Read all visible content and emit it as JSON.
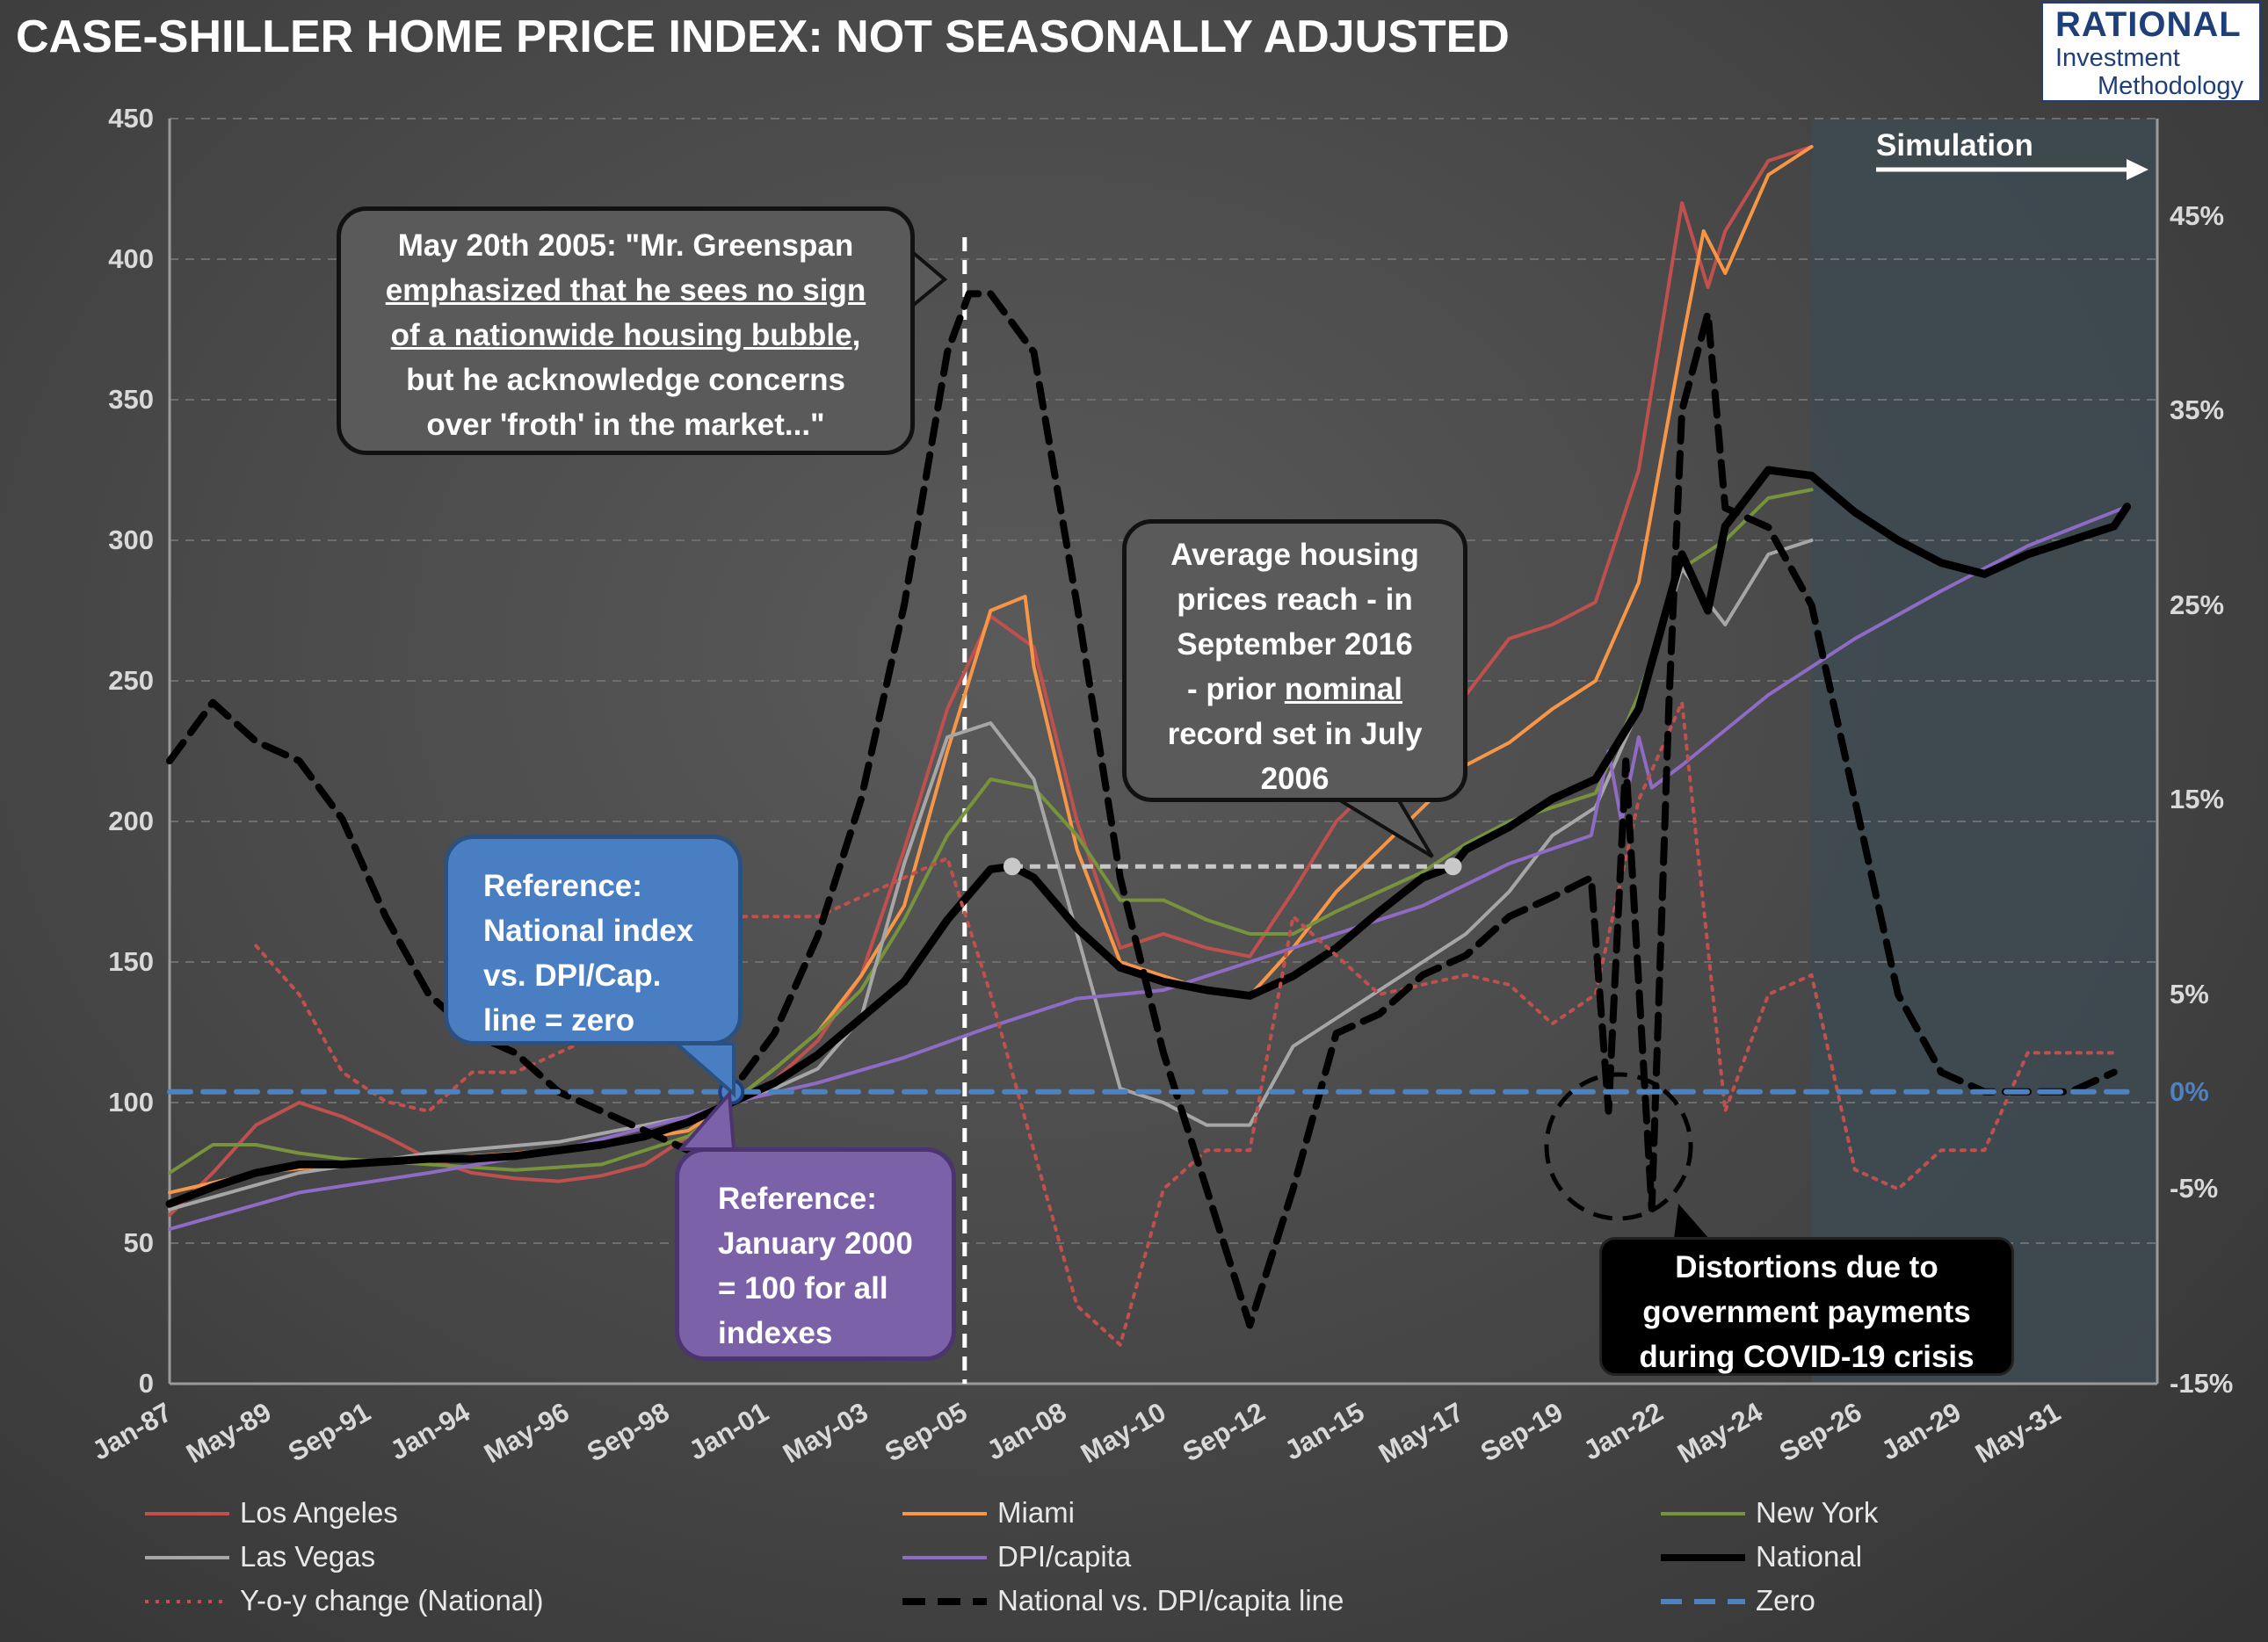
{
  "title": "CASE-SHILLER HOME PRICE INDEX: NOT SEASONALLY ADJUSTED",
  "logo": {
    "line1": "RATIONAL",
    "line2": "Investment",
    "line3": "Methodology"
  },
  "colors": {
    "los_angeles": "#c0504d",
    "miami": "#f79646",
    "new_york": "#77933c",
    "las_vegas": "#a6a6a6",
    "dpi_capita": "#8e6bc4",
    "national": "#000000",
    "yoy": "#c0504d",
    "national_vs_dpi": "#000000",
    "zero": "#4f81bd",
    "simulation_band": "#3e4a52"
  },
  "simulation_label": "Simulation",
  "callouts": {
    "greenspan": {
      "l1": "May 20th 2005: \"Mr. Greenspan",
      "l2": "emphasized that he sees no sign",
      "l3": "of a nationwide housing bubble",
      "l3_tail": ",",
      "l4": "but he acknowledge concerns",
      "l5": "over 'froth' in the market...\""
    },
    "record": {
      "l1": "Average housing",
      "l2": "prices reach - in",
      "l3": "September 2016",
      "l4a": "- prior ",
      "l4b": "nominal",
      "l5": "record set in July",
      "l6": "2006"
    },
    "national_ref": {
      "l1": "Reference:",
      "l2": "National index",
      "l3": "vs. DPI/Cap.",
      "l4": "line = zero"
    },
    "january_ref": {
      "l1": "Reference:",
      "l2": "January 2000",
      "l3": "= 100 for all",
      "l4": "indexes"
    },
    "covid": {
      "l1": "Distortions due to",
      "l2": "government payments",
      "l3": "during COVID-19 crisis"
    }
  },
  "chart_data": {
    "type": "line",
    "title": "CASE-SHILLER HOME PRICE INDEX: NOT SEASONALLY ADJUSTED",
    "x_ticks": [
      "Jan-87",
      "May-89",
      "Sep-91",
      "Jan-94",
      "May-96",
      "Sep-98",
      "Jan-01",
      "May-03",
      "Sep-05",
      "Jan-08",
      "May-10",
      "Sep-12",
      "Jan-15",
      "May-17",
      "Sep-19",
      "Jan-22",
      "May-24",
      "Sep-26",
      "Jan-29",
      "May-31"
    ],
    "x_range": [
      1987.0,
      2033.0
    ],
    "y_left": {
      "range": [
        0,
        450
      ],
      "ticks": [
        "0",
        "50",
        "100",
        "150",
        "200",
        "250",
        "300",
        "350",
        "400",
        "450"
      ]
    },
    "y_right": {
      "range": [
        -15,
        50
      ],
      "ticks": [
        "-15%",
        "-5%",
        "0%",
        "5%",
        "15%",
        "25%",
        "35%",
        "45%"
      ],
      "tick_values": [
        -15,
        -5,
        0,
        5,
        15,
        25,
        35,
        45
      ]
    },
    "simulation_start": 2025.0,
    "grid": "horizontal dashed",
    "legend_position": "bottom",
    "series": [
      {
        "name": "Los Angeles",
        "axis": "left",
        "style": "solid",
        "color": "#c0504d",
        "x": [
          1987,
          1988,
          1989,
          1990,
          1991,
          1992,
          1993,
          1994,
          1995,
          1996,
          1997,
          1998,
          1999,
          2000,
          2001,
          2002,
          2003,
          2004,
          2005,
          2006,
          2007,
          2008,
          2009,
          2010,
          2011,
          2012,
          2013,
          2014,
          2015,
          2016,
          2017,
          2018,
          2019,
          2020,
          2021,
          2022,
          2022.6,
          2023,
          2024,
          2025
        ],
        "y": [
          60,
          75,
          92,
          100,
          95,
          88,
          80,
          75,
          73,
          72,
          74,
          78,
          88,
          100,
          108,
          122,
          145,
          190,
          240,
          273,
          262,
          200,
          155,
          160,
          155,
          152,
          175,
          200,
          215,
          225,
          245,
          265,
          270,
          278,
          325,
          420,
          390,
          410,
          435,
          440
        ]
      },
      {
        "name": "Miami",
        "axis": "left",
        "style": "solid",
        "color": "#f79646",
        "x": [
          1987,
          1989,
          1991,
          1993,
          1995,
          1997,
          1999,
          2000,
          2001,
          2002,
          2003,
          2004,
          2005,
          2006,
          2006.8,
          2007,
          2008,
          2009,
          2010,
          2011,
          2012,
          2013,
          2014,
          2015,
          2016,
          2017,
          2018,
          2019,
          2020,
          2021,
          2022,
          2022.5,
          2023,
          2024,
          2025
        ],
        "y": [
          68,
          75,
          78,
          80,
          82,
          85,
          90,
          100,
          112,
          125,
          145,
          170,
          225,
          275,
          280,
          255,
          190,
          150,
          145,
          140,
          138,
          155,
          175,
          190,
          205,
          220,
          228,
          240,
          250,
          285,
          370,
          410,
          395,
          430,
          440
        ]
      },
      {
        "name": "New York",
        "axis": "left",
        "style": "solid",
        "color": "#77933c",
        "x": [
          1987,
          1988,
          1989,
          1990,
          1991,
          1993,
          1995,
          1997,
          1999,
          2000,
          2001,
          2002,
          2003,
          2004,
          2005,
          2006,
          2007,
          2008,
          2009,
          2010,
          2011,
          2012,
          2013,
          2014,
          2015,
          2016,
          2017,
          2018,
          2019,
          2020,
          2021,
          2022,
          2023,
          2024,
          2025
        ],
        "y": [
          75,
          85,
          85,
          82,
          80,
          78,
          76,
          78,
          88,
          100,
          112,
          125,
          140,
          165,
          195,
          215,
          212,
          195,
          172,
          172,
          165,
          160,
          160,
          168,
          175,
          182,
          192,
          200,
          205,
          210,
          245,
          290,
          300,
          315,
          318
        ]
      },
      {
        "name": "Las Vegas",
        "axis": "left",
        "style": "solid",
        "color": "#a6a6a6",
        "x": [
          1987,
          1990,
          1993,
          1996,
          1999,
          2000,
          2001,
          2002,
          2003,
          2004,
          2005,
          2006,
          2007,
          2008,
          2009,
          2010,
          2011,
          2012,
          2013,
          2014,
          2015,
          2016,
          2017,
          2018,
          2019,
          2020,
          2021,
          2022,
          2023,
          2024,
          2025
        ],
        "y": [
          62,
          75,
          82,
          86,
          95,
          100,
          105,
          112,
          130,
          185,
          230,
          235,
          215,
          160,
          105,
          100,
          92,
          92,
          120,
          130,
          140,
          150,
          160,
          175,
          195,
          205,
          240,
          290,
          270,
          295,
          300
        ]
      },
      {
        "name": "DPI/capita",
        "axis": "left",
        "style": "solid",
        "color": "#8e6bc4",
        "x": [
          1987,
          1990,
          1993,
          1996,
          1999,
          2000,
          2002,
          2004,
          2006,
          2008,
          2010,
          2012,
          2014,
          2016,
          2018,
          2019.9,
          2020.3,
          2020.6,
          2021,
          2021.3,
          2022,
          2024,
          2026,
          2028,
          2030,
          2032.3
        ],
        "y": [
          55,
          68,
          75,
          83,
          95,
          100,
          107,
          116,
          127,
          137,
          140,
          150,
          160,
          170,
          185,
          195,
          225,
          200,
          230,
          212,
          220,
          245,
          265,
          282,
          298,
          312
        ]
      },
      {
        "name": "National",
        "axis": "left",
        "style": "solid",
        "color": "#000000",
        "x": [
          1987,
          1988,
          1989,
          1990,
          1991,
          1992,
          1993,
          1994,
          1995,
          1996,
          1997,
          1998,
          1999,
          2000,
          2001,
          2002,
          2003,
          2004,
          2005,
          2006,
          2006.5,
          2007,
          2008,
          2009,
          2010,
          2011,
          2012,
          2013,
          2014,
          2015,
          2016,
          2016.7,
          2017,
          2018,
          2019,
          2020,
          2021,
          2022,
          2022.6,
          2023,
          2024,
          2025,
          2026,
          2027,
          2028,
          2029,
          2030,
          2031,
          2032,
          2032.3
        ],
        "y": [
          64,
          70,
          75,
          78,
          78,
          79,
          80,
          80,
          81,
          83,
          85,
          88,
          93,
          100,
          107,
          117,
          130,
          143,
          165,
          183,
          184,
          180,
          162,
          148,
          143,
          140,
          138,
          145,
          155,
          168,
          180,
          184,
          190,
          198,
          208,
          215,
          240,
          295,
          275,
          305,
          325,
          323,
          310,
          300,
          292,
          288,
          295,
          300,
          305,
          312
        ]
      },
      {
        "name": "Y-o-y change (National)",
        "axis": "right",
        "style": "dotted",
        "color": "#c0504d",
        "x": [
          1989,
          1990,
          1991,
          1992,
          1993,
          1994,
          1995,
          1996,
          1997,
          1998,
          1999,
          2000,
          2001,
          2002,
          2003,
          2004,
          2005,
          2006,
          2007,
          2008,
          2009,
          2010,
          2011,
          2012,
          2013,
          2014,
          2015,
          2016,
          2017,
          2018,
          2019,
          2020,
          2021,
          2022,
          2023,
          2024,
          2025,
          2026,
          2027,
          2028,
          2029,
          2030,
          2031,
          2032
        ],
        "y": [
          7.5,
          5,
          1,
          -0.5,
          -1,
          1,
          1,
          2,
          3,
          5,
          7,
          9,
          9,
          9,
          10,
          11,
          12,
          5,
          -3,
          -11,
          -13,
          -5,
          -3,
          -3,
          9,
          7,
          5,
          5.5,
          6,
          5.5,
          3.5,
          5,
          15,
          20,
          -1,
          5,
          6,
          -4,
          -5,
          -3,
          -3,
          2,
          2,
          2
        ]
      },
      {
        "name": "National vs. DPI/capita line",
        "axis": "right",
        "style": "dashed",
        "color": "#000000",
        "x": [
          1987,
          1988,
          1989,
          1990,
          1991,
          1992,
          1993,
          1994,
          1995,
          1996,
          1997,
          1998,
          1999,
          2000,
          2001,
          2002,
          2003,
          2004,
          2005,
          2005.5,
          2006,
          2007,
          2008,
          2009,
          2010,
          2011,
          2012,
          2013,
          2014,
          2015,
          2016,
          2017,
          2018,
          2019,
          2019.9,
          2020.3,
          2020.7,
          2021.3,
          2021.7,
          2022,
          2022.6,
          2023,
          2024,
          2025,
          2026,
          2027,
          2028,
          2029,
          2030,
          2031,
          2032
        ],
        "y": [
          17,
          20,
          18,
          17,
          14,
          9,
          5,
          3,
          2,
          0,
          -1,
          -2,
          -3,
          0,
          3,
          8,
          15,
          25,
          38,
          41,
          41,
          38,
          25,
          11,
          2,
          -5,
          -12,
          -5,
          3,
          4,
          6,
          7,
          9,
          10,
          11,
          -1,
          17,
          -6,
          20,
          35,
          40,
          30,
          29,
          25,
          15,
          5,
          1,
          0,
          0,
          0,
          1
        ]
      },
      {
        "name": "Zero",
        "axis": "right",
        "style": "dashed",
        "color": "#4f81bd",
        "x": [
          1987,
          2032.3
        ],
        "y": [
          0,
          0
        ]
      }
    ],
    "highlights": {
      "record_2006_x": 2006.5,
      "record_2006_y": 184,
      "record_2016_x": 2016.7,
      "record_2016_y": 184,
      "reference_x": 2000.0,
      "reference_y": 100,
      "greenspan_x": 2005.4
    }
  }
}
